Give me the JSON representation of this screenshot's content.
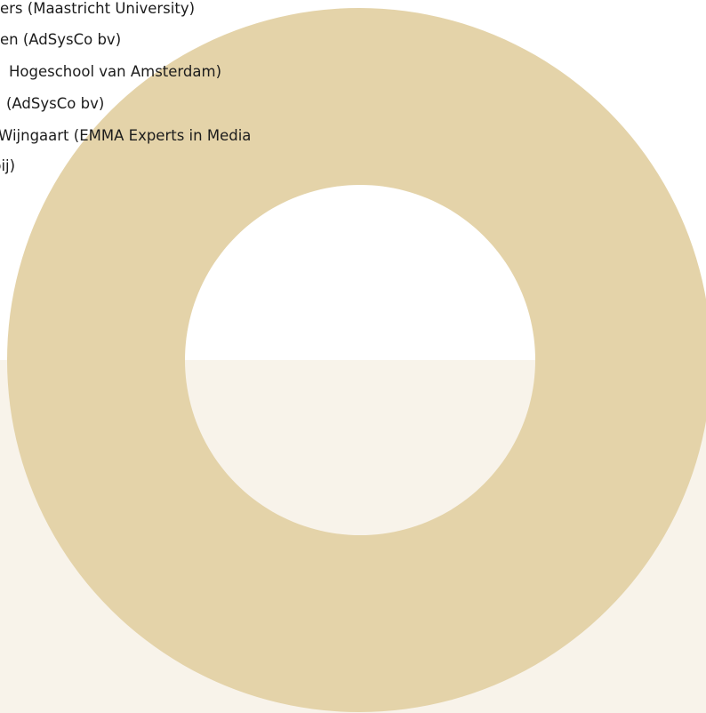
{
  "lines": [
    "ers (Maastricht University)",
    "en (AdSysCo bv)",
    "Hogeschool van Amsterdam)",
    "(AdSysCo bv)",
    "Wijngaart (EMMA Experts in Media",
    "bij)"
  ]
}
